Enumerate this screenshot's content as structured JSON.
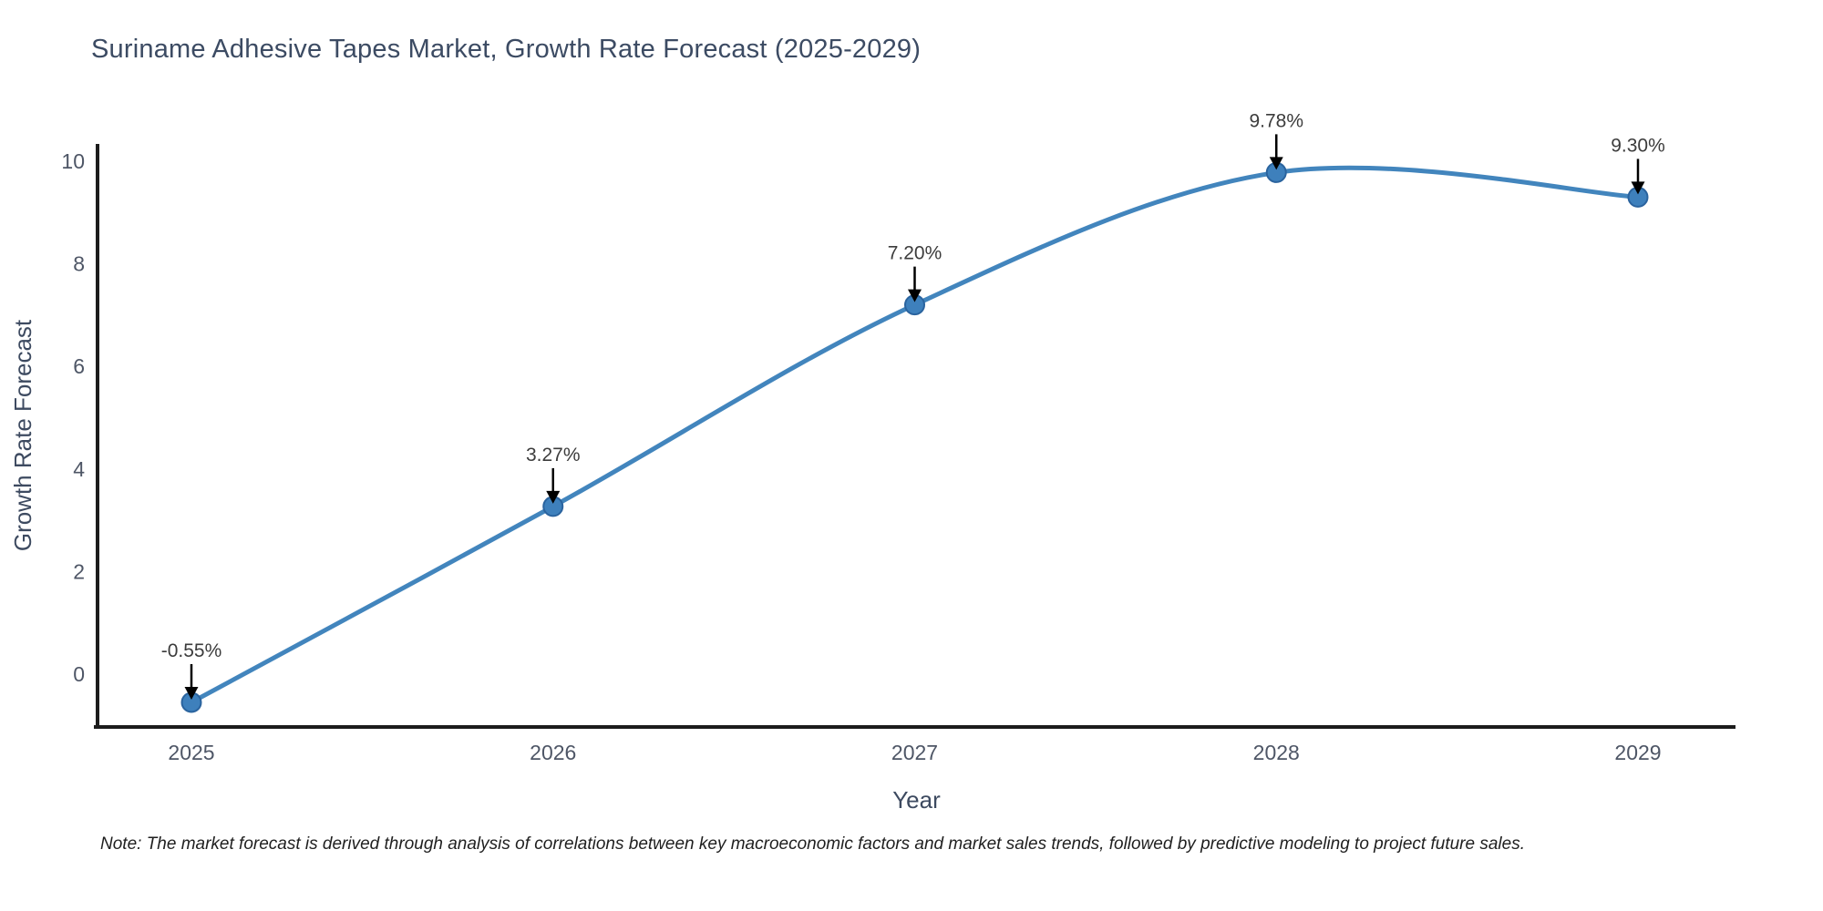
{
  "page": {
    "background_color": "#ffffff"
  },
  "header": {
    "title": "Suriname Adhesive Tapes Market, Growth Rate Forecast (2025-2029)"
  },
  "chart_data": {
    "type": "line",
    "title": "Suriname Adhesive Tapes Market, Growth Rate Forecast (2025-2029)",
    "xlabel": "Year",
    "ylabel": "Growth Rate Forecast",
    "categories": [
      "2025",
      "2026",
      "2027",
      "2028",
      "2029"
    ],
    "values": [
      -0.55,
      3.27,
      7.2,
      9.78,
      9.3
    ],
    "point_labels": [
      "-0.55%",
      "3.27%",
      "7.20%",
      "9.78%",
      "9.30%"
    ],
    "yticks": [
      0,
      2,
      4,
      6,
      8,
      10
    ],
    "ylim": [
      -1.07,
      10.35
    ],
    "line_shape": "spline",
    "grid": false,
    "legend": "none",
    "markers": true,
    "annotations_have_arrows": true,
    "colors": {
      "line": "#4285bd",
      "marker_fill": "#3e80bc",
      "marker_edge": "#2a639e",
      "axis": "#1c1c1c",
      "tick_text": "#4e5666",
      "axis_title_text": "#3d4a60",
      "title_text": "#3c4b63",
      "annotation_text": "#3c3c3c",
      "arrow": "#000000"
    }
  },
  "footer": {
    "note": "Note: The market forecast is derived through analysis of correlations between key macroeconomic factors and market sales trends, followed by predictive modeling to project future sales."
  }
}
